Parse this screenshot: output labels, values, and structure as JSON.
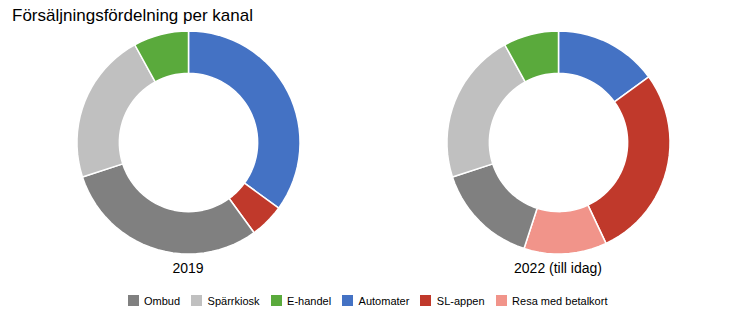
{
  "chart_data": [
    {
      "type": "pie",
      "title": "Försäljningsfördelning per kanal",
      "xlabel": "2019",
      "categories": [
        "Automater",
        "SL-appen",
        "Ombud",
        "Spärrkiosk",
        "E-handel"
      ],
      "values": [
        35,
        5,
        30,
        22,
        8
      ],
      "colors": [
        "#4472c4",
        "#c0392b",
        "#808080",
        "#c0c0c0",
        "#5aaa3c"
      ]
    },
    {
      "type": "pie",
      "xlabel": "2022 (till idag)",
      "categories": [
        "Automater",
        "SL-appen",
        "Resa med betalkort",
        "Ombud",
        "Spärrkiosk",
        "E-handel"
      ],
      "values": [
        15,
        28,
        12,
        15,
        22,
        8
      ],
      "colors": [
        "#4472c4",
        "#c0392b",
        "#f1948a",
        "#808080",
        "#c0c0c0",
        "#5aaa3c"
      ]
    }
  ],
  "legend_entries": [
    {
      "name": "Ombud",
      "color": "#808080"
    },
    {
      "name": "Spärrkiosk",
      "color": "#c0c0c0"
    },
    {
      "name": "E-handel",
      "color": "#5aaa3c"
    },
    {
      "name": "Automater",
      "color": "#4472c4"
    },
    {
      "name": "SL-appen",
      "color": "#c0392b"
    },
    {
      "name": "Resa med betalkort",
      "color": "#f1948a"
    }
  ]
}
